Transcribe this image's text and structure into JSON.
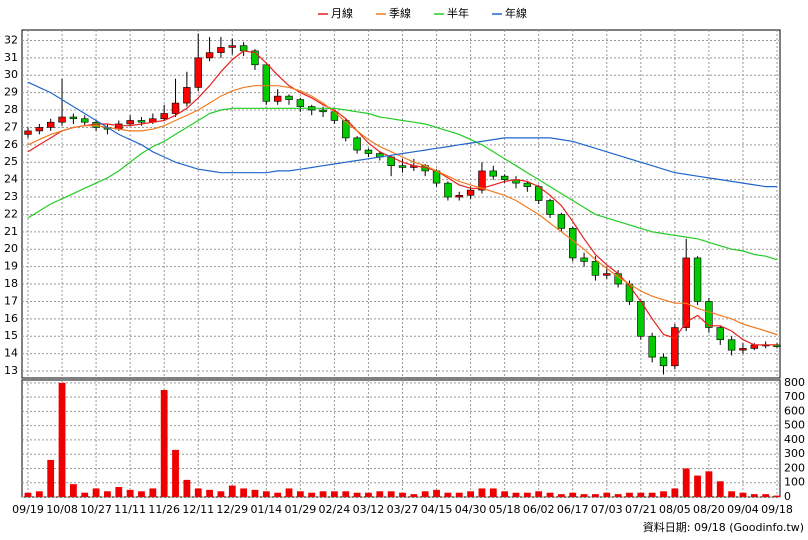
{
  "chart_data": {
    "type": "candlestick",
    "categories": [
      "09/19",
      null,
      null,
      "10/08",
      null,
      null,
      "10/27",
      null,
      null,
      "11/11",
      null,
      null,
      "11/26",
      null,
      null,
      "12/11",
      null,
      null,
      "12/29",
      null,
      null,
      "01/14",
      null,
      null,
      "01/29",
      null,
      null,
      "02/24",
      null,
      null,
      "03/12",
      null,
      null,
      "03/27",
      null,
      null,
      "04/15",
      null,
      null,
      "04/30",
      null,
      null,
      "05/18",
      null,
      null,
      "06/02",
      null,
      null,
      "06/17",
      null,
      null,
      "07/03",
      null,
      null,
      "07/21",
      null,
      null,
      "08/05",
      null,
      null,
      "08/20",
      null,
      null,
      "09/04",
      null,
      null,
      "09/18"
    ],
    "open": [
      26.6,
      26.8,
      27.0,
      27.3,
      27.6,
      27.5,
      27.3,
      27.0,
      26.9,
      27.2,
      27.4,
      27.3,
      27.5,
      27.8,
      28.4,
      29.3,
      31.0,
      31.3,
      31.6,
      31.7,
      31.4,
      30.6,
      28.5,
      28.8,
      28.6,
      28.2,
      28.0,
      27.9,
      27.4,
      26.4,
      25.7,
      25.5,
      25.3,
      24.8,
      24.7,
      24.8,
      24.5,
      23.8,
      23.0,
      23.1,
      23.4,
      24.5,
      24.2,
      24.0,
      23.8,
      23.6,
      22.8,
      22.0,
      21.2,
      19.5,
      19.3,
      18.5,
      18.6,
      18.0,
      17.0,
      15.0,
      13.8,
      13.3,
      15.5,
      19.5,
      17.0,
      15.5,
      14.8,
      14.2,
      14.3,
      14.5,
      14.5
    ],
    "high": [
      27.0,
      27.2,
      27.5,
      29.8,
      27.8,
      27.7,
      27.4,
      27.2,
      27.4,
      27.7,
      27.6,
      27.8,
      28.3,
      29.8,
      30.2,
      32.4,
      32.2,
      32.2,
      32.1,
      31.9,
      31.5,
      30.6,
      29.2,
      28.9,
      28.7,
      28.3,
      28.2,
      28.0,
      27.5,
      26.5,
      25.8,
      25.6,
      25.4,
      25.2,
      25.2,
      24.9,
      24.6,
      23.9,
      23.3,
      23.6,
      25.0,
      24.8,
      24.3,
      24.2,
      23.9,
      23.7,
      22.9,
      22.1,
      21.3,
      19.8,
      19.6,
      19.0,
      18.8,
      18.2,
      17.1,
      15.2,
      14.0,
      15.7,
      20.6,
      19.6,
      17.2,
      15.6,
      15.0,
      14.6,
      14.6,
      14.7,
      14.6
    ],
    "low": [
      26.4,
      26.6,
      26.8,
      27.1,
      27.2,
      27.1,
      26.8,
      26.6,
      26.8,
      27.1,
      27.1,
      27.2,
      27.4,
      27.6,
      28.2,
      29.1,
      30.8,
      31.0,
      31.2,
      31.1,
      30.3,
      28.3,
      28.3,
      28.3,
      27.9,
      27.7,
      27.6,
      27.2,
      26.2,
      25.5,
      25.3,
      25.1,
      24.2,
      24.4,
      24.5,
      24.2,
      23.6,
      22.8,
      22.8,
      22.9,
      23.2,
      24.0,
      23.8,
      23.5,
      23.3,
      22.6,
      21.8,
      21.0,
      19.3,
      19.0,
      18.2,
      18.3,
      17.8,
      16.8,
      14.8,
      13.5,
      12.8,
      13.1,
      15.3,
      16.8,
      15.2,
      14.5,
      13.9,
      14.0,
      14.2,
      14.3,
      14.3
    ],
    "close": [
      26.8,
      27.0,
      27.3,
      27.6,
      27.5,
      27.3,
      27.0,
      26.9,
      27.2,
      27.4,
      27.3,
      27.5,
      27.8,
      28.4,
      29.3,
      31.0,
      31.3,
      31.6,
      31.7,
      31.4,
      30.6,
      28.5,
      28.8,
      28.6,
      28.2,
      28.0,
      27.9,
      27.4,
      26.4,
      25.7,
      25.5,
      25.3,
      24.8,
      24.7,
      24.8,
      24.5,
      23.8,
      23.0,
      23.1,
      23.4,
      24.5,
      24.2,
      24.0,
      23.8,
      23.6,
      22.8,
      22.0,
      21.2,
      19.5,
      19.3,
      18.5,
      18.6,
      18.0,
      17.0,
      15.0,
      13.8,
      13.3,
      15.5,
      19.5,
      17.0,
      15.5,
      14.8,
      14.2,
      14.3,
      14.5,
      14.5,
      14.4
    ],
    "up_color": "#ff0000",
    "down_color": "#00cc00",
    "series": [
      {
        "name": "月線",
        "color": "#e8211d",
        "values": [
          25.6,
          26.0,
          26.4,
          26.8,
          27.0,
          27.1,
          27.2,
          27.2,
          27.1,
          27.1,
          27.2,
          27.3,
          27.4,
          27.7,
          28.1,
          28.7,
          29.4,
          30.2,
          30.9,
          31.4,
          31.3,
          30.7,
          30.0,
          29.4,
          29.0,
          28.7,
          28.3,
          28.0,
          27.5,
          26.8,
          26.1,
          25.6,
          25.3,
          25.0,
          24.8,
          24.7,
          24.5,
          24.1,
          23.7,
          23.5,
          23.5,
          23.7,
          23.9,
          24.0,
          23.9,
          23.6,
          23.1,
          22.5,
          21.6,
          20.6,
          19.7,
          19.1,
          18.6,
          17.9,
          17.0,
          16.0,
          15.1,
          14.9,
          15.8,
          16.2,
          15.6,
          15.6,
          15.3,
          14.8,
          14.5,
          14.5,
          14.5
        ]
      },
      {
        "name": "季線",
        "color": "#f07b1f",
        "values": [
          26.0,
          26.3,
          26.6,
          26.8,
          27.0,
          27.1,
          27.1,
          27.0,
          26.9,
          26.8,
          26.8,
          26.9,
          27.1,
          27.4,
          27.7,
          28.0,
          28.4,
          28.8,
          29.1,
          29.3,
          29.4,
          29.4,
          29.4,
          29.3,
          29.1,
          28.8,
          28.4,
          27.9,
          27.3,
          26.8,
          26.3,
          25.9,
          25.6,
          25.3,
          25.0,
          24.8,
          24.5,
          24.2,
          23.9,
          23.7,
          23.5,
          23.3,
          23.1,
          22.8,
          22.4,
          22.0,
          21.5,
          21.0,
          20.5,
          20.0,
          19.4,
          18.9,
          18.4,
          18.0,
          17.6,
          17.3,
          17.1,
          16.9,
          16.9,
          16.6,
          16.4,
          16.2,
          16.0,
          15.7,
          15.5,
          15.3,
          15.1
        ]
      },
      {
        "name": "半年",
        "color": "#22cc22",
        "values": [
          21.8,
          22.2,
          22.6,
          22.9,
          23.2,
          23.5,
          23.8,
          24.1,
          24.5,
          25.0,
          25.5,
          25.9,
          26.2,
          26.6,
          27.0,
          27.4,
          27.8,
          28.0,
          28.1,
          28.1,
          28.1,
          28.1,
          28.1,
          28.1,
          28.1,
          28.1,
          28.1,
          28.1,
          28.0,
          27.9,
          27.8,
          27.6,
          27.5,
          27.4,
          27.3,
          27.2,
          27.0,
          26.8,
          26.6,
          26.3,
          26.0,
          25.6,
          25.2,
          24.8,
          24.4,
          24.0,
          23.6,
          23.2,
          22.8,
          22.4,
          22.0,
          21.8,
          21.6,
          21.4,
          21.2,
          21.0,
          20.9,
          20.8,
          20.7,
          20.6,
          20.4,
          20.2,
          20.0,
          19.9,
          19.7,
          19.6,
          19.4
        ]
      },
      {
        "name": "年線",
        "color": "#2266cc",
        "values": [
          29.6,
          29.3,
          29.0,
          28.6,
          28.2,
          27.8,
          27.4,
          27.0,
          26.6,
          26.3,
          26.0,
          25.6,
          25.3,
          25.0,
          24.8,
          24.6,
          24.5,
          24.4,
          24.4,
          24.4,
          24.4,
          24.4,
          24.5,
          24.5,
          24.6,
          24.7,
          24.8,
          24.9,
          25.0,
          25.1,
          25.2,
          25.3,
          25.4,
          25.5,
          25.6,
          25.7,
          25.8,
          25.9,
          26.0,
          26.1,
          26.2,
          26.3,
          26.4,
          26.4,
          26.4,
          26.4,
          26.4,
          26.3,
          26.2,
          26.0,
          25.8,
          25.6,
          25.4,
          25.2,
          25.0,
          24.8,
          24.6,
          24.4,
          24.3,
          24.2,
          24.1,
          24.0,
          23.9,
          23.8,
          23.7,
          23.6,
          23.6
        ]
      }
    ],
    "volume": {
      "color": "#ee0000",
      "axis": "y2",
      "values": [
        30,
        40,
        260,
        800,
        90,
        30,
        60,
        40,
        70,
        50,
        40,
        60,
        750,
        330,
        120,
        60,
        50,
        40,
        80,
        60,
        50,
        40,
        30,
        60,
        40,
        30,
        40,
        40,
        40,
        30,
        30,
        40,
        40,
        30,
        20,
        40,
        50,
        30,
        30,
        40,
        60,
        60,
        40,
        30,
        30,
        40,
        30,
        20,
        30,
        20,
        20,
        30,
        20,
        30,
        30,
        30,
        40,
        60,
        200,
        150,
        180,
        110,
        40,
        30,
        20,
        20,
        10
      ]
    },
    "ylim": [
      12.6,
      32.6
    ],
    "yticks": [
      13,
      14,
      15,
      16,
      17,
      18,
      19,
      20,
      21,
      22,
      23,
      24,
      25,
      26,
      27,
      28,
      29,
      30,
      31,
      32
    ],
    "y2lim": [
      0,
      820
    ],
    "y2ticks": [
      0,
      100,
      200,
      300,
      400,
      500,
      600,
      700,
      800
    ],
    "grid": true,
    "legend": "top",
    "footnote": "資料日期: 09/18 (Goodinfo.tw)"
  }
}
